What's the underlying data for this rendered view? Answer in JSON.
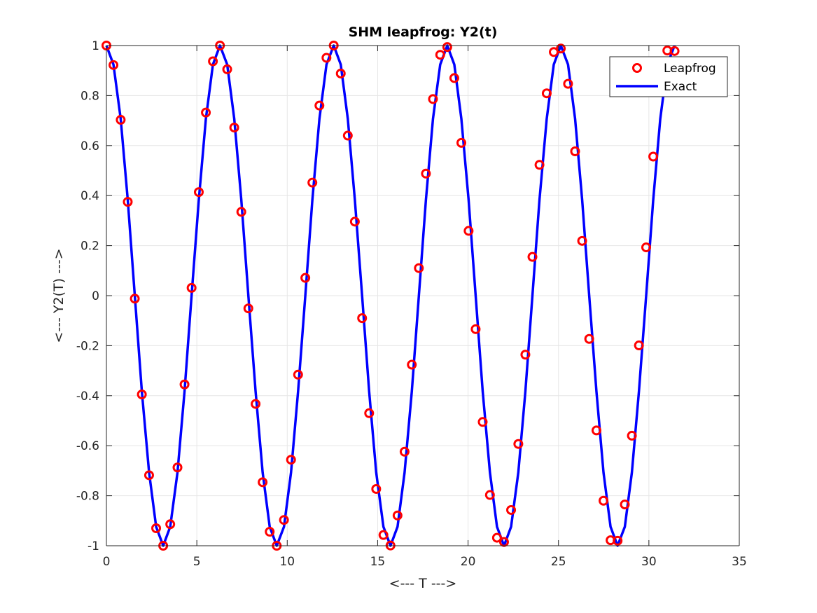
{
  "chart_data": {
    "type": "line",
    "title": "SHM leapfrog: Y2(t)",
    "xlabel": "<--- T --->",
    "ylabel": "<--- Y2(T) --->",
    "xlim": [
      0,
      35
    ],
    "ylim": [
      -1,
      1
    ],
    "xticks": [
      0,
      5,
      10,
      15,
      20,
      25,
      30,
      35
    ],
    "xtick_labels": [
      "0",
      "5",
      "10",
      "15",
      "20",
      "25",
      "30",
      "35"
    ],
    "yticks": [
      -1,
      -0.8,
      -0.6,
      -0.4,
      -0.2,
      0,
      0.2,
      0.4,
      0.6,
      0.8,
      1
    ],
    "ytick_labels": [
      "-1",
      "-0.8",
      "-0.6",
      "-0.4",
      "-0.2",
      "0",
      "0.2",
      "0.4",
      "0.6",
      "0.8",
      "1"
    ],
    "grid": true,
    "legend_position": "top-right",
    "colors": {
      "leapfrog": "#ff0000",
      "exact": "#0000ff",
      "grid": "#e6e6e6",
      "axis": "#262626"
    },
    "series": [
      {
        "name": "Leapfrog",
        "style": "markers",
        "x": [
          0.0,
          0.39,
          0.79,
          1.18,
          1.57,
          1.96,
          2.36,
          2.75,
          3.14,
          3.53,
          3.93,
          4.32,
          4.71,
          5.11,
          5.5,
          5.89,
          6.28,
          6.68,
          7.07,
          7.46,
          7.85,
          8.25,
          8.64,
          9.03,
          9.42,
          9.82,
          10.21,
          10.6,
          11.0,
          11.39,
          11.78,
          12.17,
          12.57,
          12.96,
          13.35,
          13.74,
          14.14,
          14.53,
          14.92,
          15.32,
          15.71,
          16.1,
          16.49,
          16.89,
          17.28,
          17.67,
          18.06,
          18.46,
          18.85,
          19.24,
          19.63,
          20.03,
          20.42,
          20.81,
          21.21,
          21.6,
          21.99,
          22.38,
          22.78,
          23.17,
          23.56,
          23.95,
          24.35,
          24.74,
          25.13,
          25.53,
          25.92,
          26.31,
          26.7,
          27.1,
          27.49,
          27.88,
          28.27,
          28.67,
          29.06,
          29.45,
          29.85,
          30.24,
          30.63,
          31.02,
          31.42
        ],
        "y": [
          1.0,
          0.922,
          0.703,
          0.375,
          -0.012,
          -0.395,
          -0.718,
          -0.93,
          -1.0,
          -0.914,
          -0.687,
          -0.355,
          0.031,
          0.414,
          0.732,
          0.937,
          1.0,
          0.905,
          0.672,
          0.335,
          -0.051,
          -0.433,
          -0.746,
          -0.944,
          -1.0,
          -0.897,
          -0.656,
          -0.316,
          0.071,
          0.452,
          0.76,
          0.951,
          1.0,
          0.888,
          0.64,
          0.296,
          -0.09,
          -0.47,
          -0.773,
          -0.957,
          -0.999,
          -0.879,
          -0.624,
          -0.276,
          0.11,
          0.488,
          0.786,
          0.963,
          0.994,
          0.87,
          0.611,
          0.259,
          -0.134,
          -0.505,
          -0.797,
          -0.968,
          -0.985,
          -0.857,
          -0.593,
          -0.236,
          0.155,
          0.523,
          0.809,
          0.974,
          0.988,
          0.847,
          0.577,
          0.219,
          -0.173,
          -0.539,
          -0.82,
          -0.978,
          -0.98,
          -0.835,
          -0.56,
          -0.199,
          0.193,
          0.556,
          0.82,
          0.98,
          0.978
        ]
      },
      {
        "name": "Exact",
        "style": "line",
        "x": [
          0.0,
          0.39,
          0.79,
          1.18,
          1.57,
          1.96,
          2.36,
          2.75,
          3.14,
          3.53,
          3.93,
          4.32,
          4.71,
          5.11,
          5.5,
          5.89,
          6.28,
          6.68,
          7.07,
          7.46,
          7.85,
          8.25,
          8.64,
          9.03,
          9.42,
          9.82,
          10.21,
          10.6,
          11.0,
          11.39,
          11.78,
          12.17,
          12.57,
          12.96,
          13.35,
          13.74,
          14.14,
          14.53,
          14.92,
          15.32,
          15.71,
          16.1,
          16.49,
          16.89,
          17.28,
          17.67,
          18.06,
          18.46,
          18.85,
          19.24,
          19.63,
          20.03,
          20.42,
          20.81,
          21.21,
          21.6,
          21.99,
          22.38,
          22.78,
          23.17,
          23.56,
          23.95,
          24.35,
          24.74,
          25.13,
          25.53,
          25.92,
          26.31,
          26.7,
          27.1,
          27.49,
          27.88,
          28.27,
          28.67,
          29.06,
          29.45,
          29.85,
          30.24,
          30.63,
          31.02,
          31.42
        ],
        "y": [
          1.0,
          0.924,
          0.707,
          0.383,
          0.0,
          -0.383,
          -0.707,
          -0.924,
          -1.0,
          -0.924,
          -0.707,
          -0.383,
          0.0,
          0.383,
          0.707,
          0.924,
          1.0,
          0.924,
          0.707,
          0.383,
          0.0,
          -0.383,
          -0.707,
          -0.924,
          -1.0,
          -0.924,
          -0.707,
          -0.383,
          0.0,
          0.383,
          0.707,
          0.924,
          1.0,
          0.924,
          0.707,
          0.383,
          0.0,
          -0.383,
          -0.707,
          -0.924,
          -1.0,
          -0.924,
          -0.707,
          -0.383,
          0.0,
          0.383,
          0.707,
          0.924,
          1.0,
          0.924,
          0.707,
          0.383,
          0.0,
          -0.383,
          -0.707,
          -0.924,
          -1.0,
          -0.924,
          -0.707,
          -0.383,
          0.0,
          0.383,
          0.707,
          0.924,
          1.0,
          0.924,
          0.707,
          0.383,
          0.0,
          -0.383,
          -0.707,
          -0.924,
          -1.0,
          -0.924,
          -0.707,
          -0.383,
          0.0,
          0.383,
          0.707,
          0.924,
          1.0
        ]
      }
    ]
  }
}
